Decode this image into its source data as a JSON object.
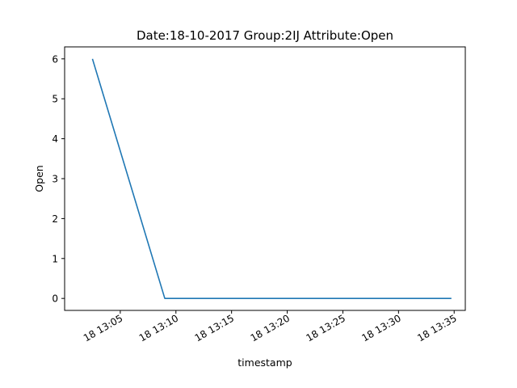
{
  "chart_data": {
    "type": "line",
    "title": "Date:18-10-2017  Group:2IJ Attribute:Open",
    "xlabel": "timestamp",
    "ylabel": "Open",
    "x": [
      "2017-10-18 13:02:30",
      "2017-10-18 13:09:00",
      "2017-10-18 13:34:45"
    ],
    "series": [
      {
        "values": [
          6,
          0,
          0
        ],
        "color": "#1f77b4"
      }
    ],
    "xlim": [
      "2017-10-18 13:00:00",
      "2017-10-18 13:36:00"
    ],
    "ylim": [
      -0.3,
      6.3
    ],
    "x_ticks": [
      "2017-10-18 13:05",
      "2017-10-18 13:10",
      "2017-10-18 13:15",
      "2017-10-18 13:20",
      "2017-10-18 13:25",
      "2017-10-18 13:30",
      "2017-10-18 13:35"
    ],
    "x_tick_labels": [
      "18 13:05",
      "18 13:10",
      "18 13:15",
      "18 13:20",
      "18 13:25",
      "18 13:30",
      "18 13:35"
    ],
    "y_ticks": [
      0,
      1,
      2,
      3,
      4,
      5,
      6
    ],
    "y_tick_labels": [
      "0",
      "1",
      "2",
      "3",
      "4",
      "5",
      "6"
    ],
    "grid": false,
    "legend": "none"
  }
}
